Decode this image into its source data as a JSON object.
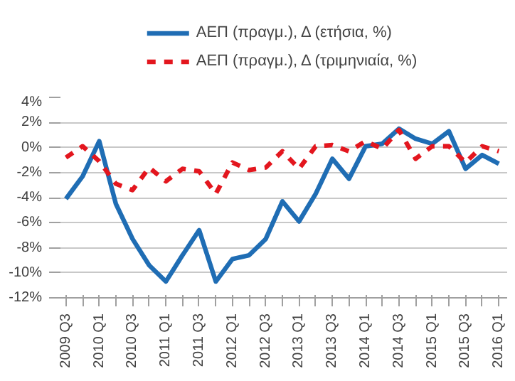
{
  "chart_data": {
    "type": "line",
    "categories": [
      "2009 Q3",
      null,
      "2010 Q1",
      null,
      "2010 Q3",
      null,
      "2011 Q1",
      null,
      "2011 Q3",
      null,
      "2012 Q1",
      null,
      "2012 Q3",
      null,
      "2013 Q1",
      null,
      "2013 Q3",
      null,
      "2014 Q1",
      null,
      "2014 Q3",
      null,
      "2015 Q1",
      null,
      "2015 Q3",
      null,
      "2016 Q1"
    ],
    "series": [
      {
        "name": "ΑΕΠ (πραγμ.), Δ (ετήσια, %)",
        "color": "#1f6db4",
        "line_style": "solid",
        "values": [
          -4.1,
          -2.3,
          0.5,
          -4.5,
          -7.3,
          -9.4,
          -10.7,
          -8.6,
          -6.6,
          -10.7,
          -8.9,
          -8.6,
          -7.3,
          -4.3,
          -5.9,
          -3.7,
          -0.9,
          -2.5,
          0.1,
          0.3,
          1.5,
          0.7,
          0.3,
          1.3,
          -1.7,
          -0.6,
          -1.3
        ]
      },
      {
        "name": "ΑΕΠ (πραγμ.), Δ (τριμηνιαία, %)",
        "color": "#e3161e",
        "line_style": "dashed",
        "values": [
          -0.8,
          0.1,
          -1.1,
          -2.9,
          -3.4,
          -1.6,
          -2.7,
          -1.7,
          -1.9,
          -3.7,
          -1.2,
          -1.8,
          -1.6,
          -0.3,
          -1.7,
          0.1,
          0.2,
          -0.3,
          0.5,
          -0.1,
          1.4,
          -0.9,
          0.1,
          0.1,
          -1.2,
          0.1,
          -0.3
        ]
      }
    ],
    "ylim": [
      -12,
      4
    ],
    "yticks": [
      {
        "value": -12,
        "label": "-12%"
      },
      {
        "value": -10,
        "label": "-10%"
      },
      {
        "value": -8,
        "label": "-8%"
      },
      {
        "value": -6,
        "label": "-6%"
      },
      {
        "value": -4,
        "label": "-4%"
      },
      {
        "value": -2,
        "label": "-2%"
      },
      {
        "value": 0,
        "label": "0%"
      },
      {
        "value": 2,
        "label": "2%"
      },
      {
        "value": 4,
        "label": "4%"
      }
    ],
    "grid": "y",
    "legend": "top",
    "marker": "none"
  }
}
